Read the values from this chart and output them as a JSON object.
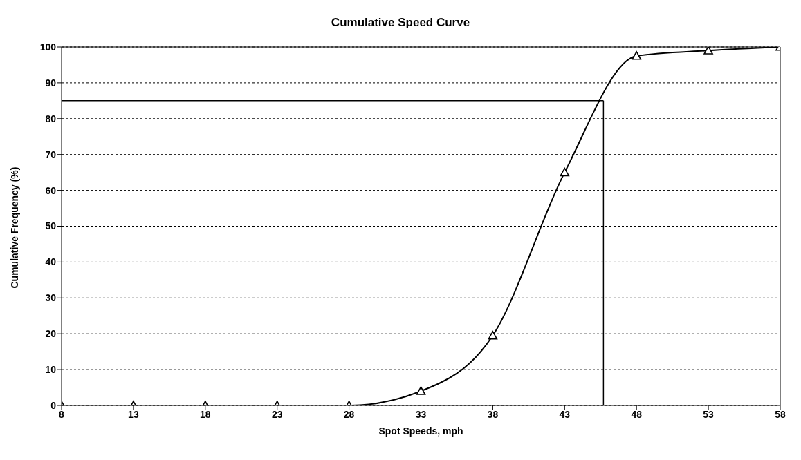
{
  "chart_data": {
    "type": "line",
    "title": "Cumulative Speed Curve",
    "xlabel": "Spot Speeds, mph",
    "ylabel": "Cumulative Frequency (%)",
    "x": [
      8,
      13,
      18,
      23,
      28,
      33,
      38,
      43,
      48,
      53,
      58
    ],
    "series": [
      {
        "color": "#000000",
        "values": [
          0,
          0,
          0,
          0,
          0,
          4,
          19.5,
          65,
          97.5,
          99,
          100
        ]
      }
    ],
    "xlim": [
      8,
      58
    ],
    "xticks": [
      8,
      13,
      18,
      23,
      28,
      33,
      38,
      43,
      48,
      53,
      58
    ],
    "ylim": [
      0,
      100
    ],
    "yticks": [
      0,
      10,
      20,
      30,
      40,
      50,
      60,
      70,
      80,
      90,
      100
    ],
    "ref_lines": [
      {
        "axis": "y",
        "value": 85,
        "color": "#000000"
      },
      {
        "axis": "x",
        "value": 45.7,
        "color": "#000000"
      }
    ],
    "grid": "y",
    "marker": "triangle",
    "line_style": "solid"
  }
}
